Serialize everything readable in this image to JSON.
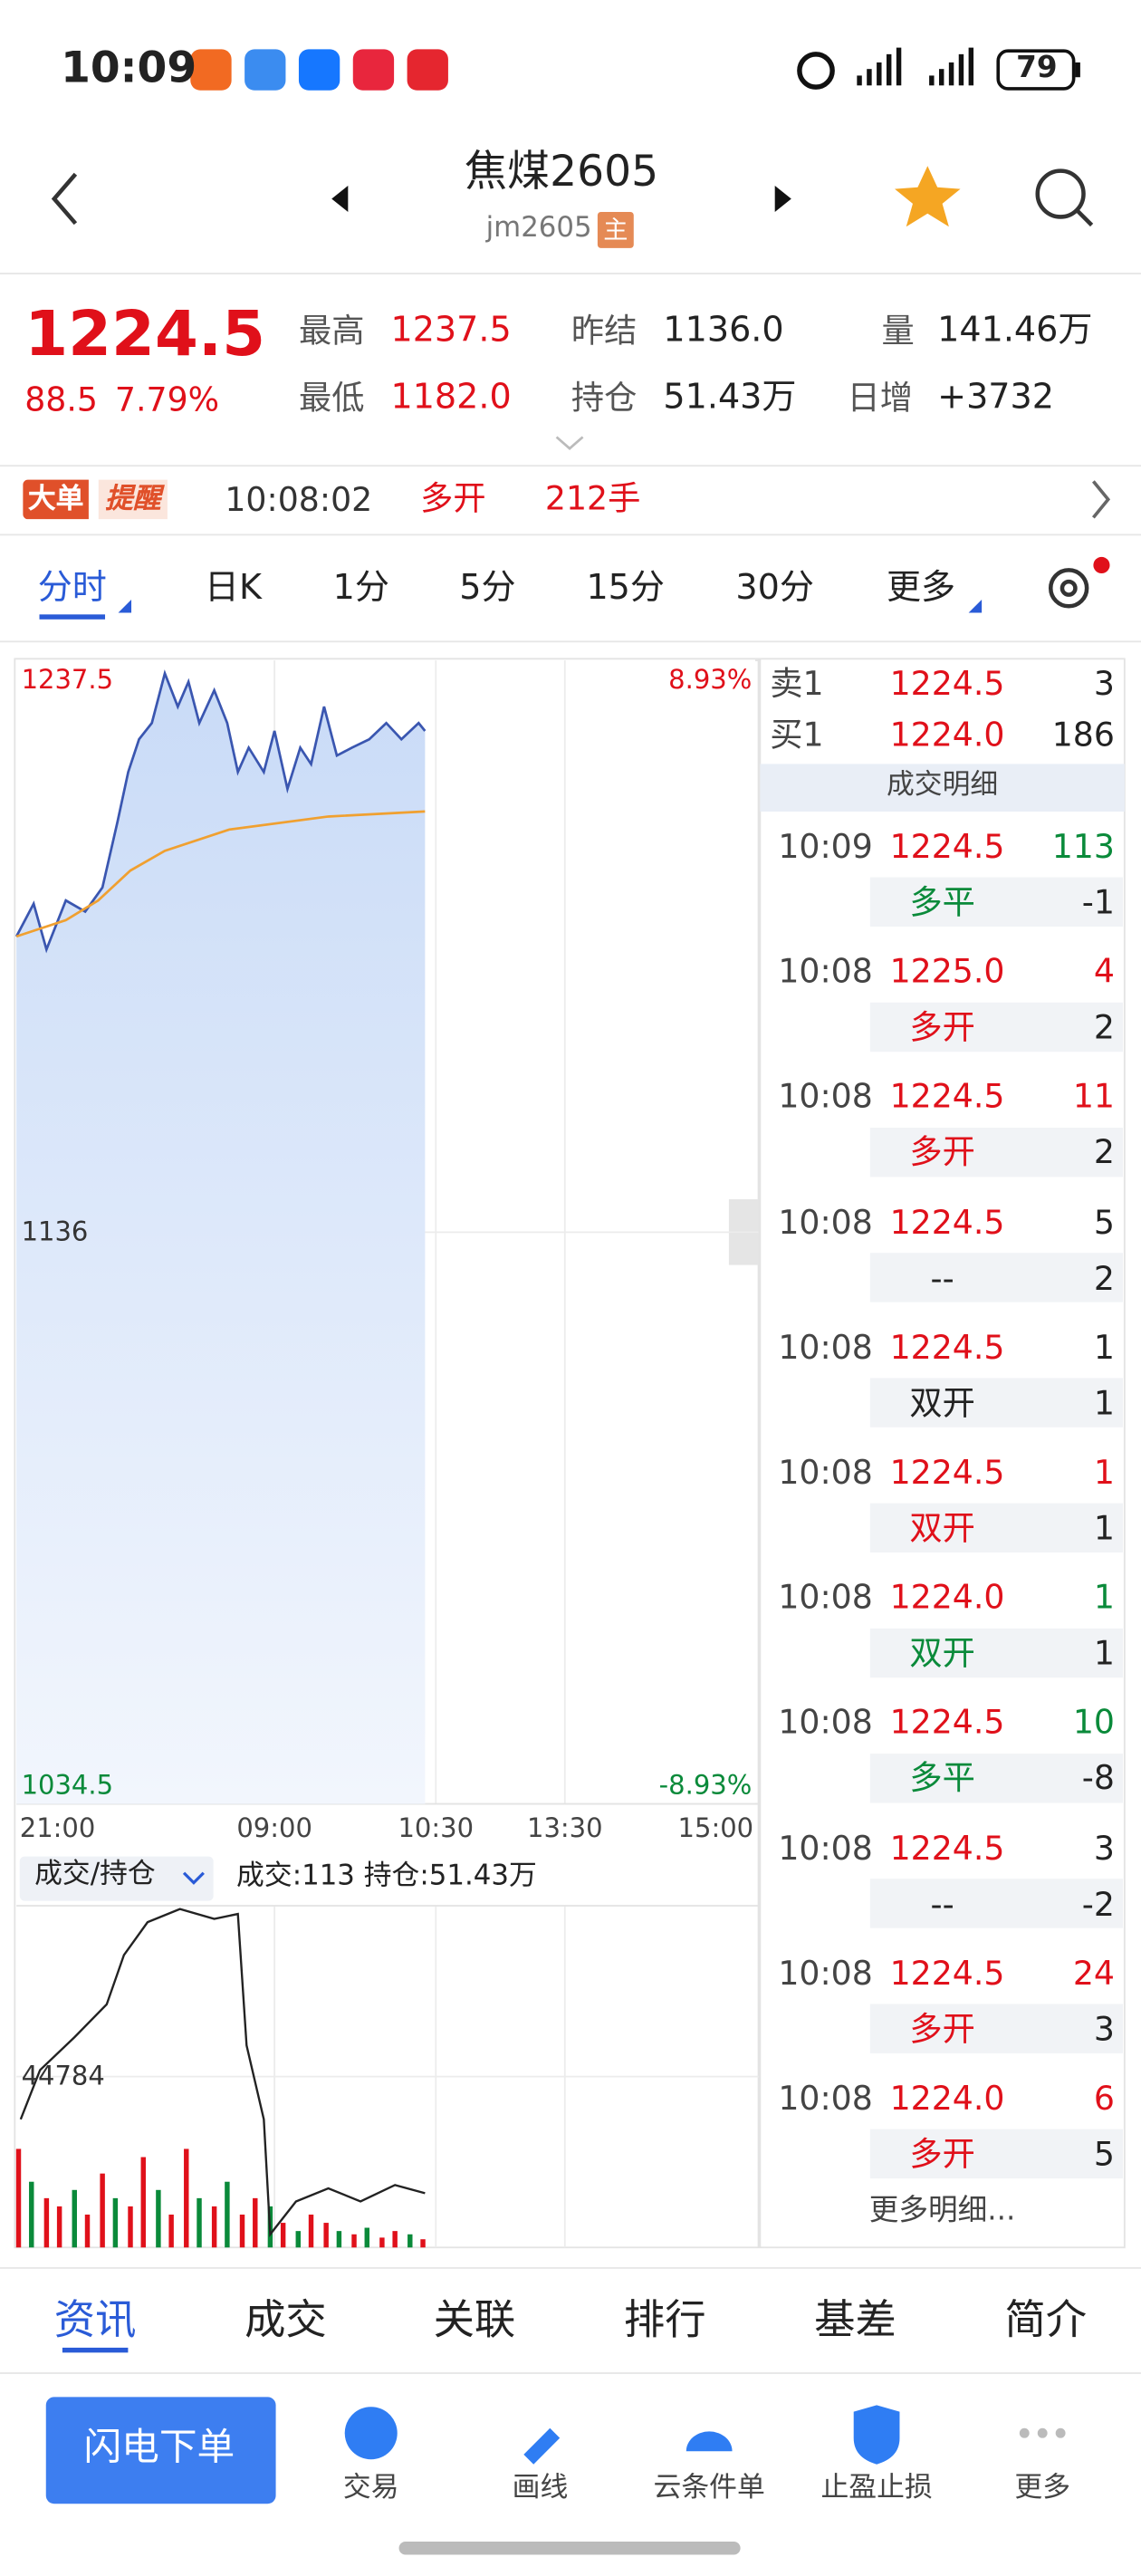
{
  "status_bar": {
    "time": "10:09",
    "battery": "79"
  },
  "header": {
    "title": "焦煤2605",
    "code": "jm2605",
    "badge": "主"
  },
  "quote": {
    "price": "1224.5",
    "change": "88.5",
    "change_pct": "7.79%",
    "stats": [
      {
        "label": "最高",
        "value": "1237.5",
        "color": "#e0101a"
      },
      {
        "label": "最低",
        "value": "1182.0",
        "color": "#e0101a"
      },
      {
        "label": "昨结",
        "value": "1136.0",
        "color": "#222222"
      },
      {
        "label": "持仓",
        "value": "51.43万",
        "color": "#222222"
      },
      {
        "label": "量",
        "value": "141.46万",
        "color": "#222222"
      },
      {
        "label": "日增",
        "value": "+3732",
        "color": "#222222"
      }
    ]
  },
  "alert": {
    "badge_a": "大单",
    "badge_b": "提醒",
    "time": "10:08:02",
    "type": "多开",
    "size": "212手"
  },
  "tabs": [
    "分时",
    "日K",
    "1分",
    "5分",
    "15分",
    "30分",
    "更多"
  ],
  "chart_data": [
    {
      "type": "line",
      "xlim": [
        0,
        345
      ],
      "xticks": [
        {
          "value": 0,
          "label": "21:00"
        },
        {
          "value": 120,
          "label": "09:00"
        },
        {
          "value": 195,
          "label": "10:30"
        },
        {
          "value": 255,
          "label": "13:30"
        },
        {
          "value": 345,
          "label": "15:00"
        }
      ],
      "ylim": [
        1034.5,
        1237.5
      ],
      "yticks": [
        1034.5,
        1136,
        1237.5
      ],
      "y2lim": [
        -8.93,
        8.93
      ],
      "y2ticks": [
        {
          "value": -8.93,
          "label": "-8.93%"
        },
        {
          "value": 8.93,
          "label": "8.93%"
        }
      ],
      "grid": true,
      "series": [
        {
          "color": "#3a56b0",
          "x": [
            0,
            8,
            14,
            23,
            32,
            40,
            47,
            52,
            57,
            63,
            69,
            75,
            80,
            85,
            92,
            98,
            103,
            108,
            115,
            120,
            126,
            132,
            137,
            143,
            149,
            156,
            164,
            172,
            179,
            187,
            190
          ],
          "values": [
            1188.5,
            1194.3,
            1186.2,
            1194.9,
            1192.9,
            1197.2,
            1208.9,
            1217.7,
            1223.5,
            1226.4,
            1235.2,
            1229.3,
            1233.7,
            1226.4,
            1232.2,
            1226.4,
            1217.7,
            1222.0,
            1217.7,
            1225.0,
            1214.7,
            1222.0,
            1219.1,
            1229.3,
            1220.6,
            1222.0,
            1223.5,
            1226.4,
            1223.5,
            1226.4,
            1225.0
          ]
        },
        {
          "color": "#f0a030",
          "x": [
            0,
            23,
            38,
            53,
            69,
            99,
            145,
            190
          ],
          "values": [
            1188.5,
            1191.4,
            1194.9,
            1200.2,
            1203.7,
            1207.5,
            1209.8,
            1210.7
          ]
        }
      ]
    },
    {
      "type": "bar",
      "title": "成交/持仓",
      "subtitle": "成交:113 持仓:51.43万",
      "xlim": [
        0,
        345
      ],
      "ylim": [
        0,
        89568
      ],
      "yticks": [
        44784
      ],
      "series": [
        {
          "type": "bar",
          "x": [
            1,
            7,
            14,
            20,
            27,
            33,
            40,
            46,
            53,
            59,
            66,
            72,
            79,
            85,
            92,
            98,
            105,
            111,
            118,
            124,
            131,
            137,
            144,
            150,
            157,
            163,
            170,
            176,
            183,
            189
          ],
          "values": [
            25836,
            17224,
            12918,
            10765,
            15071,
            8612,
            19377,
            12918,
            10765,
            23683,
            15071,
            8612,
            25836,
            12918,
            10765,
            17224,
            8612,
            12918,
            10765,
            6459,
            4306,
            8612,
            6459,
            4306,
            3445,
            5167,
            2584,
            4306,
            3445,
            2153
          ],
          "colors": [
            "#e0101a",
            "#0a8a3a",
            "#e0101a",
            "#e0101a",
            "#0a8a3a",
            "#e0101a",
            "#e0101a",
            "#0a8a3a",
            "#e0101a",
            "#e0101a",
            "#0a8a3a",
            "#e0101a",
            "#e0101a",
            "#0a8a3a",
            "#e0101a",
            "#0a8a3a",
            "#e0101a",
            "#e0101a",
            "#0a8a3a",
            "#e0101a",
            "#0a8a3a",
            "#e0101a",
            "#e0101a",
            "#0a8a3a",
            "#e0101a",
            "#0a8a3a",
            "#e0101a",
            "#e0101a",
            "#0a8a3a",
            "#e0101a"
          ]
        },
        {
          "type": "line",
          "color": "#222222",
          "x": [
            2,
            11,
            27,
            42,
            50,
            61,
            76,
            92,
            103,
            107,
            115,
            118,
            130,
            145,
            160,
            176,
            190
          ],
          "values": [
            33588,
            46505,
            55118,
            63730,
            76648,
            85260,
            88705,
            86121,
            87414,
            52965,
            33588,
            3445,
            12057,
            15502,
            12057,
            16363,
            14210
          ]
        }
      ]
    }
  ],
  "order_book": [
    {
      "label": "卖1",
      "price": "1224.5",
      "qty": "3"
    },
    {
      "label": "买1",
      "price": "1224.0",
      "qty": "186"
    }
  ],
  "trades_title": "成交明细",
  "trades": [
    {
      "time": "10:09",
      "price": "1224.5",
      "volume": "113",
      "type": "多平",
      "change": "-1",
      "color": "#0a8a3a"
    },
    {
      "time": "10:08",
      "price": "1225.0",
      "volume": "4",
      "type": "多开",
      "change": "2",
      "color": "#e0101a"
    },
    {
      "time": "10:08",
      "price": "1224.5",
      "volume": "11",
      "type": "多开",
      "change": "2",
      "color": "#e0101a"
    },
    {
      "time": "10:08",
      "price": "1224.5",
      "volume": "5",
      "type": "--",
      "change": "2",
      "color": "#222222"
    },
    {
      "time": "10:08",
      "price": "1224.5",
      "volume": "1",
      "type": "双开",
      "change": "1",
      "color": "#222222"
    },
    {
      "time": "10:08",
      "price": "1224.5",
      "volume": "1",
      "type": "双开",
      "change": "1",
      "color": "#e0101a"
    },
    {
      "time": "10:08",
      "price": "1224.0",
      "volume": "1",
      "type": "双开",
      "change": "1",
      "color": "#0a8a3a"
    },
    {
      "time": "10:08",
      "price": "1224.5",
      "volume": "10",
      "type": "多平",
      "change": "-8",
      "color": "#0a8a3a"
    },
    {
      "time": "10:08",
      "price": "1224.5",
      "volume": "3",
      "type": "--",
      "change": "-2",
      "color": "#222222"
    },
    {
      "time": "10:08",
      "price": "1224.5",
      "volume": "24",
      "type": "多开",
      "change": "3",
      "color": "#e0101a"
    },
    {
      "time": "10:08",
      "price": "1224.0",
      "volume": "6",
      "type": "多开",
      "change": "5",
      "color": "#e0101a"
    }
  ],
  "more_trades": "更多明细...",
  "bottom_tabs": [
    "资讯",
    "成交",
    "关联",
    "排行",
    "基差",
    "简介"
  ],
  "actions": {
    "primary": "闪电下单",
    "items": [
      "交易",
      "画线",
      "云条件单",
      "止盈止损",
      "更多"
    ]
  }
}
